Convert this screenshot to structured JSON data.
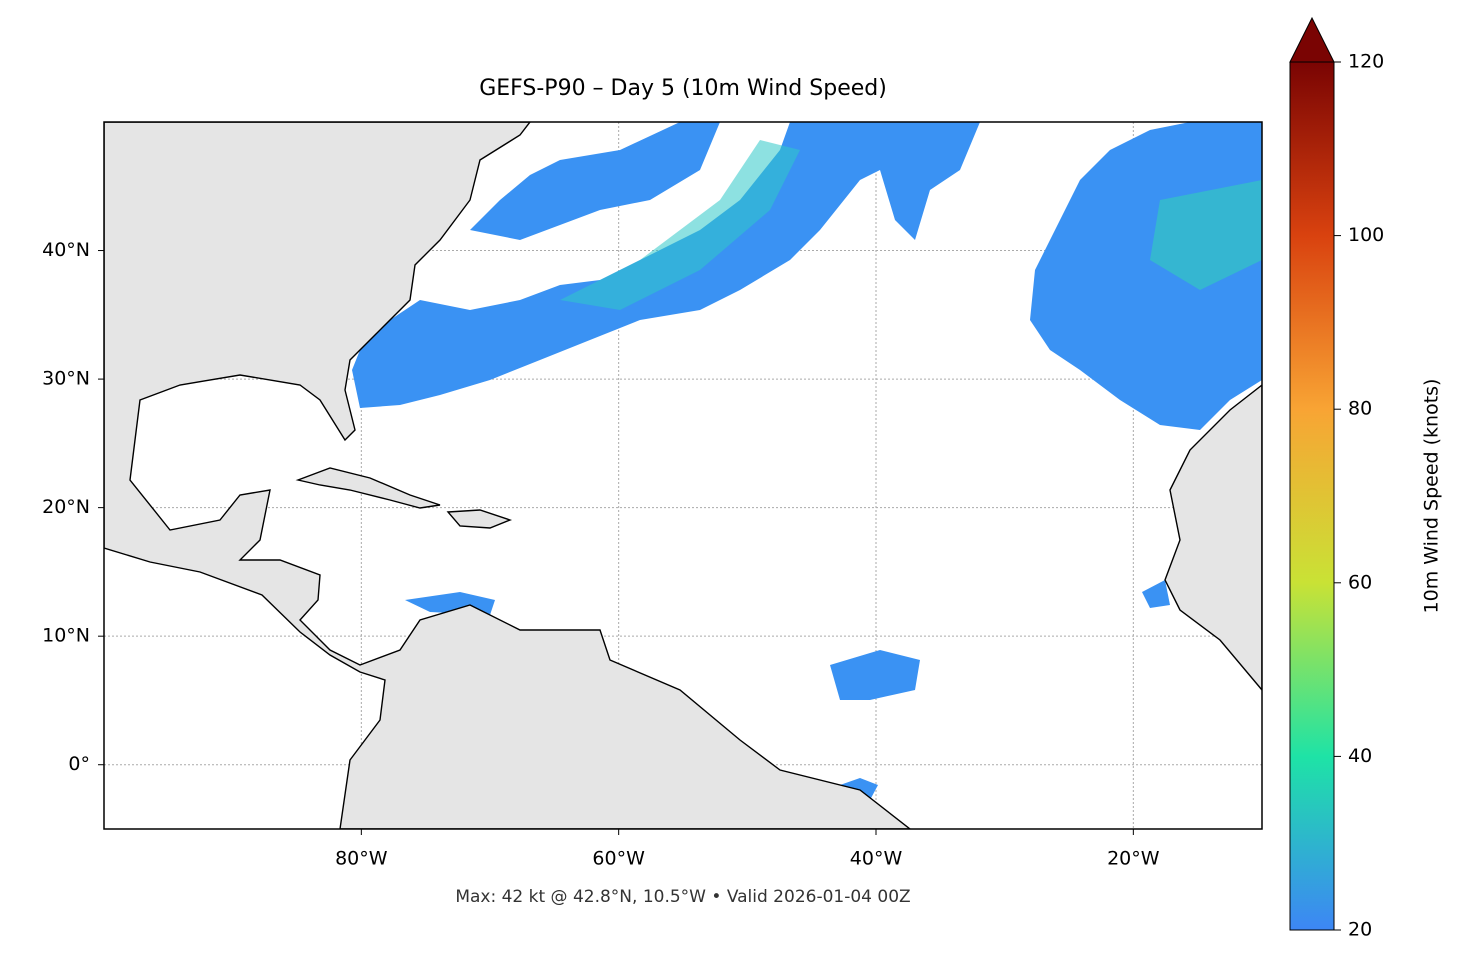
{
  "map": {
    "title": "GEFS-P90 – Day 5 (10m Wind Speed)",
    "xlim": [
      -100,
      -10
    ],
    "ylim": [
      -5,
      50
    ],
    "xticks": [
      {
        "value": -80,
        "label": "80°W"
      },
      {
        "value": -60,
        "label": "60°W"
      },
      {
        "value": -40,
        "label": "40°W"
      },
      {
        "value": -20,
        "label": "20°W"
      }
    ],
    "yticks": [
      {
        "value": 40,
        "label": "40°N"
      },
      {
        "value": 30,
        "label": "30°N"
      },
      {
        "value": 20,
        "label": "20°N"
      },
      {
        "value": 10,
        "label": "10°N"
      },
      {
        "value": 0,
        "label": "0°"
      }
    ],
    "grid": true,
    "footer": "Max: 42 kt @ 42.8°N, 10.5°W • Valid 2026-01-04 00Z"
  },
  "colorbar": {
    "label": "10m Wind Speed (knots)",
    "lim": [
      20,
      120
    ],
    "ticks": [
      20,
      40,
      60,
      80,
      100,
      120
    ],
    "colors": [
      "#3d86f5",
      "#1ee3a6",
      "#c9e235",
      "#f8a434",
      "#d9420f",
      "#7a0403"
    ]
  }
}
